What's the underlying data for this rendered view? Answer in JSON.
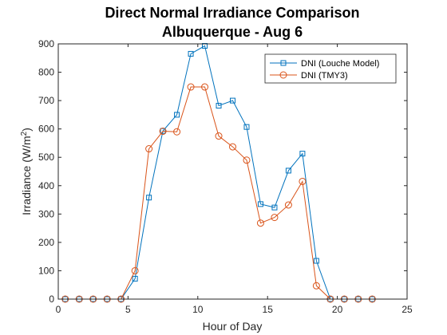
{
  "chart_data": {
    "type": "line",
    "title": "Direct Normal Irradiance Comparison",
    "subtitle": "Albuquerque - Aug 6",
    "xlabel": "Hour of Day",
    "ylabel_main": "Irradiance (W/m",
    "ylabel_sup": "2",
    "ylabel_tail": ")",
    "xlim": [
      0,
      25
    ],
    "ylim": [
      0,
      900
    ],
    "xticks": [
      "0",
      "5",
      "10",
      "15",
      "20",
      "25"
    ],
    "yticks": [
      "0",
      "100",
      "200",
      "300",
      "400",
      "500",
      "600",
      "700",
      "800",
      "900"
    ],
    "legend_position": "top-right",
    "grid": false,
    "series": [
      {
        "name": "DNI (Louche Model)",
        "color": "#0072BD",
        "marker": "square",
        "x": [
          0.5,
          1.5,
          2.5,
          3.5,
          4.5,
          5.5,
          6.5,
          7.5,
          8.5,
          9.5,
          10.5,
          11.5,
          12.5,
          13.5,
          14.5,
          15.5,
          16.5,
          17.5,
          18.5,
          19.5,
          20.5,
          21.5,
          22.5
        ],
        "y": [
          0,
          0,
          0,
          0,
          0,
          72,
          358,
          593,
          650,
          865,
          893,
          682,
          700,
          607,
          335,
          323,
          453,
          513,
          135,
          0,
          0,
          0,
          0
        ]
      },
      {
        "name": "DNI (TMY3)",
        "color": "#D95319",
        "marker": "circle",
        "x": [
          0.5,
          1.5,
          2.5,
          3.5,
          4.5,
          5.5,
          6.5,
          7.5,
          8.5,
          9.5,
          10.5,
          11.5,
          12.5,
          13.5,
          14.5,
          15.5,
          16.5,
          17.5,
          18.5,
          19.5,
          20.5,
          21.5,
          22.5
        ],
        "y": [
          0,
          0,
          0,
          0,
          0,
          100,
          530,
          592,
          590,
          748,
          748,
          575,
          537,
          490,
          268,
          288,
          332,
          415,
          47,
          0,
          0,
          0,
          0
        ]
      }
    ]
  }
}
